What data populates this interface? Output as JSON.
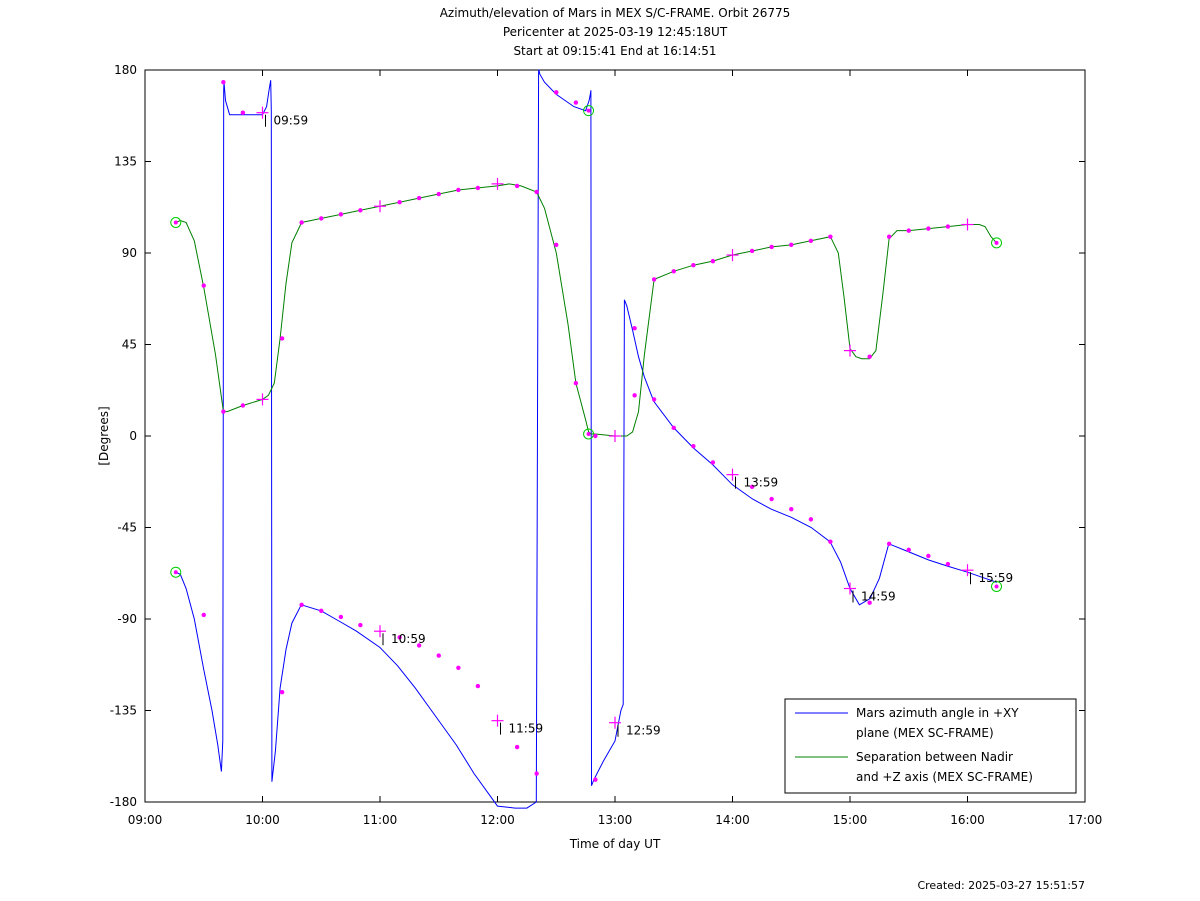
{
  "chart_data": {
    "type": "line",
    "title_lines": [
      "Azimuth/elevation of Mars in MEX S/C-FRAME.  Orbit 26775",
      "Pericenter at 2025-03-19 12:45:18UT",
      "Start at 09:15:41 End at 16:14:51"
    ],
    "xlabel": "Time of day UT",
    "ylabel": "[Degrees]",
    "xlim": [
      9,
      17
    ],
    "ylim": [
      -180,
      180
    ],
    "x_ticks": [
      {
        "v": 9,
        "label": "09:00"
      },
      {
        "v": 10,
        "label": "10:00"
      },
      {
        "v": 11,
        "label": "11:00"
      },
      {
        "v": 12,
        "label": "12:00"
      },
      {
        "v": 13,
        "label": "13:00"
      },
      {
        "v": 14,
        "label": "14:00"
      },
      {
        "v": 15,
        "label": "15:00"
      },
      {
        "v": 16,
        "label": "16:00"
      },
      {
        "v": 17,
        "label": "17:00"
      }
    ],
    "y_ticks": [
      {
        "v": 180,
        "label": "180"
      },
      {
        "v": 135,
        "label": "135"
      },
      {
        "v": 90,
        "label": "90"
      },
      {
        "v": 45,
        "label": "45"
      },
      {
        "v": 0,
        "label": "0"
      },
      {
        "v": -45,
        "label": "-45"
      },
      {
        "v": -90,
        "label": "-90"
      },
      {
        "v": -135,
        "label": "-135"
      },
      {
        "v": -180,
        "label": "-180"
      }
    ],
    "series": [
      {
        "name": "Mars azimuth angle in +XY plane (MEX SC-FRAME)",
        "legend_lines": [
          "Mars azimuth angle in +XY",
          "plane (MEX SC-FRAME)"
        ],
        "color": "#0000ff",
        "x": [
          9.262,
          9.3,
          9.35,
          9.42,
          9.5,
          9.57,
          9.62,
          9.65,
          9.662,
          9.67,
          9.672,
          9.685,
          9.72,
          9.85,
          10.0,
          10.035,
          10.055,
          10.07,
          10.075,
          10.08,
          10.11,
          10.15,
          10.2,
          10.25,
          10.33,
          10.5,
          10.65,
          10.8,
          11.0,
          11.15,
          11.3,
          11.45,
          11.65,
          11.8,
          12.0,
          12.15,
          12.25,
          12.33,
          12.35,
          12.352,
          12.36,
          12.4,
          12.5,
          12.65,
          12.75,
          12.78,
          12.79,
          12.795,
          12.8,
          12.82,
          12.9,
          13.0,
          13.05,
          13.07,
          13.08,
          13.1,
          13.15,
          13.2,
          13.25,
          13.33,
          13.5,
          13.67,
          13.83,
          14.0,
          14.17,
          14.33,
          14.5,
          14.67,
          14.83,
          14.92,
          15.0,
          15.08,
          15.17,
          15.25,
          15.33,
          15.5,
          15.67,
          15.83,
          16.0,
          16.15,
          16.25
        ],
        "y": [
          -67,
          -68,
          -75,
          -90,
          -115,
          -135,
          -152,
          -165,
          -150,
          170,
          174,
          165,
          158,
          158,
          158,
          162,
          170,
          175,
          160,
          -170,
          -155,
          -124,
          -105,
          -92,
          -83,
          -86,
          -91,
          -96,
          -104,
          -113,
          -124,
          -136,
          -152,
          -166,
          -182,
          -194,
          -204,
          -180,
          180,
          180,
          178,
          174,
          168,
          162,
          160,
          165,
          168,
          170,
          -172,
          -169,
          -160,
          -150,
          -135,
          -132,
          67,
          64,
          52,
          39,
          29,
          17,
          4,
          -6,
          -14,
          -24,
          -31,
          -36,
          -40,
          -45,
          -52,
          -62,
          -75,
          -83,
          -80,
          -70,
          -53,
          -57,
          -61,
          -64,
          -67,
          -70,
          -72
        ],
        "markers": [
          [
            9.262,
            -67,
            "circle"
          ],
          [
            9.5,
            -88,
            "dot"
          ],
          [
            9.667,
            174,
            "dot"
          ],
          [
            9.833,
            159,
            "dot"
          ],
          [
            10.0,
            159,
            "plus"
          ],
          [
            10.167,
            -126,
            "dot"
          ],
          [
            10.333,
            -83,
            "dot"
          ],
          [
            10.5,
            -86,
            "dot"
          ],
          [
            10.667,
            -89,
            "dot"
          ],
          [
            10.833,
            -93,
            "dot"
          ],
          [
            11.0,
            -96,
            "plus"
          ],
          [
            11.167,
            -99,
            "dot"
          ],
          [
            11.333,
            -103,
            "dot"
          ],
          [
            11.5,
            -108,
            "dot"
          ],
          [
            11.667,
            -114,
            "dot"
          ],
          [
            11.833,
            -123,
            "dot"
          ],
          [
            12.0,
            -140,
            "plus"
          ],
          [
            12.167,
            -153,
            "dot"
          ],
          [
            12.333,
            -166,
            "dot"
          ],
          [
            12.5,
            169,
            "dot"
          ],
          [
            12.667,
            164,
            "dot"
          ],
          [
            12.775,
            160,
            "circle"
          ],
          [
            12.833,
            -169,
            "dot"
          ],
          [
            13.0,
            -141,
            "plus"
          ],
          [
            13.167,
            53,
            "dot"
          ],
          [
            13.333,
            18,
            "dot"
          ],
          [
            13.5,
            4,
            "dot"
          ],
          [
            13.667,
            -5,
            "dot"
          ],
          [
            13.833,
            -13,
            "dot"
          ],
          [
            14.0,
            -19,
            "plus"
          ],
          [
            14.167,
            -25,
            "dot"
          ],
          [
            14.333,
            -31,
            "dot"
          ],
          [
            14.5,
            -36,
            "dot"
          ],
          [
            14.667,
            -41,
            "dot"
          ],
          [
            14.833,
            -52,
            "dot"
          ],
          [
            15.0,
            -75,
            "plus"
          ],
          [
            15.167,
            -82,
            "dot"
          ],
          [
            15.333,
            -53,
            "dot"
          ],
          [
            15.5,
            -56,
            "dot"
          ],
          [
            15.667,
            -59,
            "dot"
          ],
          [
            15.833,
            -63,
            "dot"
          ],
          [
            16.0,
            -66,
            "plus"
          ],
          [
            16.247,
            -74,
            "circle"
          ]
        ]
      },
      {
        "name": "Separation between Nadir and +Z axis (MEX SC-FRAME)",
        "legend_lines": [
          "Separation between Nadir",
          "and +Z axis (MEX SC-FRAME)"
        ],
        "color": "#008000",
        "x": [
          9.262,
          9.3,
          9.35,
          9.42,
          9.5,
          9.6,
          9.667,
          9.7,
          9.833,
          10.0,
          10.05,
          10.1,
          10.15,
          10.2,
          10.25,
          10.333,
          10.5,
          10.667,
          10.833,
          11.0,
          11.167,
          11.333,
          11.5,
          11.667,
          11.833,
          12.0,
          12.1,
          12.2,
          12.333,
          12.4,
          12.5,
          12.6,
          12.667,
          12.75,
          12.775,
          12.8,
          12.833,
          13.0,
          13.1,
          13.15,
          13.2,
          13.25,
          13.333,
          13.5,
          13.667,
          13.833,
          14.0,
          14.167,
          14.333,
          14.5,
          14.667,
          14.833,
          14.9,
          14.95,
          15.0,
          15.05,
          15.1,
          15.167,
          15.22,
          15.28,
          15.333,
          15.4,
          15.5,
          15.667,
          15.833,
          16.0,
          16.1,
          16.15,
          16.2,
          16.247
        ],
        "y": [
          105,
          106,
          105,
          96,
          73,
          40,
          12,
          12,
          15,
          18,
          20,
          26,
          48,
          75,
          95,
          105,
          107,
          109,
          111,
          113,
          115,
          117,
          119,
          121,
          122,
          123,
          124,
          123,
          120,
          112,
          90,
          55,
          26,
          8,
          2,
          1,
          1,
          0,
          0,
          2,
          12,
          40,
          77,
          81,
          84,
          86,
          89,
          91,
          93,
          94,
          96,
          98,
          90,
          68,
          43,
          39,
          38,
          38,
          42,
          70,
          97,
          101,
          101,
          102,
          103,
          104,
          104,
          103,
          98,
          95
        ],
        "markers": [
          [
            9.262,
            105,
            "circle"
          ],
          [
            9.5,
            74,
            "dot"
          ],
          [
            9.667,
            12,
            "dot"
          ],
          [
            9.833,
            15,
            "dot"
          ],
          [
            10.0,
            18,
            "plus"
          ],
          [
            10.167,
            48,
            "dot"
          ],
          [
            10.333,
            105,
            "dot"
          ],
          [
            10.5,
            107,
            "dot"
          ],
          [
            10.667,
            109,
            "dot"
          ],
          [
            10.833,
            111,
            "dot"
          ],
          [
            11.0,
            113,
            "plus"
          ],
          [
            11.167,
            115,
            "dot"
          ],
          [
            11.333,
            117,
            "dot"
          ],
          [
            11.5,
            119,
            "dot"
          ],
          [
            11.667,
            121,
            "dot"
          ],
          [
            11.833,
            122,
            "dot"
          ],
          [
            12.0,
            124,
            "plus"
          ],
          [
            12.167,
            123,
            "dot"
          ],
          [
            12.333,
            120,
            "dot"
          ],
          [
            12.5,
            94,
            "dot"
          ],
          [
            12.667,
            26,
            "dot"
          ],
          [
            12.775,
            1,
            "circle"
          ],
          [
            12.833,
            0,
            "dot"
          ],
          [
            13.0,
            0,
            "plus"
          ],
          [
            13.167,
            20,
            "dot"
          ],
          [
            13.333,
            77,
            "dot"
          ],
          [
            13.5,
            81,
            "dot"
          ],
          [
            13.667,
            84,
            "dot"
          ],
          [
            13.833,
            86,
            "dot"
          ],
          [
            14.0,
            89,
            "plus"
          ],
          [
            14.167,
            91,
            "dot"
          ],
          [
            14.333,
            93,
            "dot"
          ],
          [
            14.5,
            94,
            "dot"
          ],
          [
            14.667,
            96,
            "dot"
          ],
          [
            14.833,
            98,
            "dot"
          ],
          [
            15.0,
            42,
            "plus"
          ],
          [
            15.167,
            39,
            "dot"
          ],
          [
            15.333,
            98,
            "dot"
          ],
          [
            15.5,
            101,
            "dot"
          ],
          [
            15.667,
            102,
            "dot"
          ],
          [
            15.833,
            103,
            "dot"
          ],
          [
            16.0,
            104,
            "plus"
          ],
          [
            16.247,
            95,
            "circle"
          ]
        ]
      }
    ],
    "time_annotations": [
      {
        "x": 10.0,
        "y": 159,
        "label": "09:59"
      },
      {
        "x": 11.0,
        "y": -96,
        "label": "10:59"
      },
      {
        "x": 12.0,
        "y": -140,
        "label": "11:59"
      },
      {
        "x": 13.0,
        "y": -141,
        "label": "12:59"
      },
      {
        "x": 14.0,
        "y": -19,
        "label": "13:59"
      },
      {
        "x": 15.0,
        "y": -75,
        "label": "14:59"
      },
      {
        "x": 16.0,
        "y": -66,
        "label": "15:59"
      }
    ],
    "marker_color": "#ff00ff",
    "endpoint_color": "#00cc00",
    "legend_position": "bottom-right",
    "grid": false
  },
  "footer": {
    "created": "Created: 2025-03-27 15:51:57"
  }
}
